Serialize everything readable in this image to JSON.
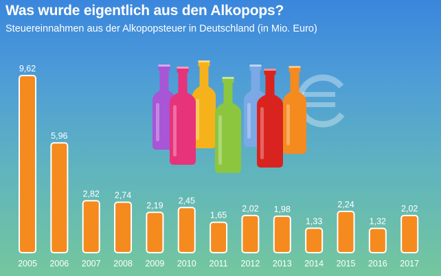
{
  "colors": {
    "bar": "#f58a1f",
    "bar_stroke": "#ffffff",
    "text": "#ffffff"
  },
  "chart_data": {
    "type": "bar",
    "title": "Was wurde eigentlich aus den Alkopops?",
    "subtitle": "Steuereinnahmen aus der Alkopopsteuer in Deutschland (in Mio. Euro)",
    "categories": [
      "2005",
      "2006",
      "2007",
      "2008",
      "2009",
      "2010",
      "2011",
      "2012",
      "2013",
      "2014",
      "2015",
      "2016",
      "2017"
    ],
    "values": [
      9.62,
      5.96,
      2.82,
      2.74,
      2.19,
      2.45,
      1.65,
      2.02,
      1.98,
      1.33,
      2.24,
      1.32,
      2.02
    ],
    "value_labels": [
      "9,62",
      "5,96",
      "2,82",
      "2,74",
      "2,19",
      "2,45",
      "1,65",
      "2,02",
      "1,98",
      "1,33",
      "2,24",
      "1,32",
      "2,02"
    ],
    "ylim": [
      0,
      9.62
    ],
    "grid": false,
    "legend": "none"
  },
  "decoration": {
    "bottle_colors": [
      "#a855d6",
      "#e6337a",
      "#f6b21b",
      "#8cc63f",
      "#7aa9e6",
      "#d9231f",
      "#f58a1f"
    ],
    "icon": "euro-icon"
  }
}
